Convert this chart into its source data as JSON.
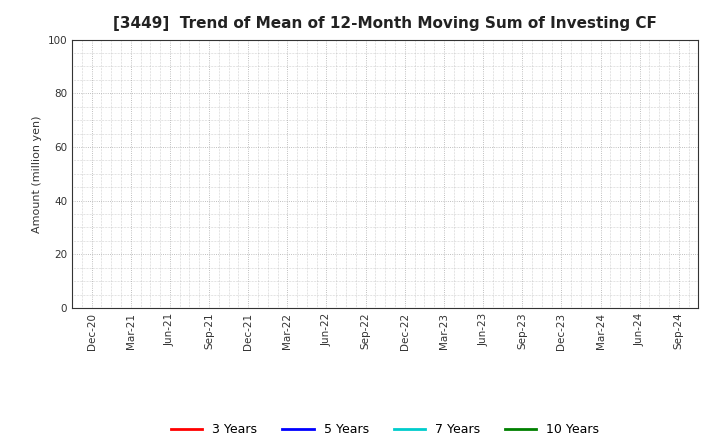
{
  "title": "[3449]  Trend of Mean of 12-Month Moving Sum of Investing CF",
  "ylabel": "Amount (million yen)",
  "ylim": [
    0,
    100
  ],
  "yticks": [
    0,
    20,
    40,
    60,
    80,
    100
  ],
  "background_color": "#ffffff",
  "grid_color": "#aaaaaa",
  "plot_bg_color": "#ffffff",
  "x_labels": [
    "Dec-20",
    "Mar-21",
    "Jun-21",
    "Sep-21",
    "Dec-21",
    "Mar-22",
    "Jun-22",
    "Sep-22",
    "Dec-22",
    "Mar-23",
    "Jun-23",
    "Sep-23",
    "Dec-23",
    "Mar-24",
    "Jun-24",
    "Sep-24"
  ],
  "legend_entries": [
    {
      "label": "3 Years",
      "color": "#ff0000"
    },
    {
      "label": "5 Years",
      "color": "#0000ff"
    },
    {
      "label": "7 Years",
      "color": "#00cccc"
    },
    {
      "label": "10 Years",
      "color": "#008000"
    }
  ],
  "title_fontsize": 11,
  "axis_label_fontsize": 8,
  "tick_fontsize": 7.5,
  "legend_fontsize": 9,
  "fig_width": 7.2,
  "fig_height": 4.4,
  "dpi": 100
}
